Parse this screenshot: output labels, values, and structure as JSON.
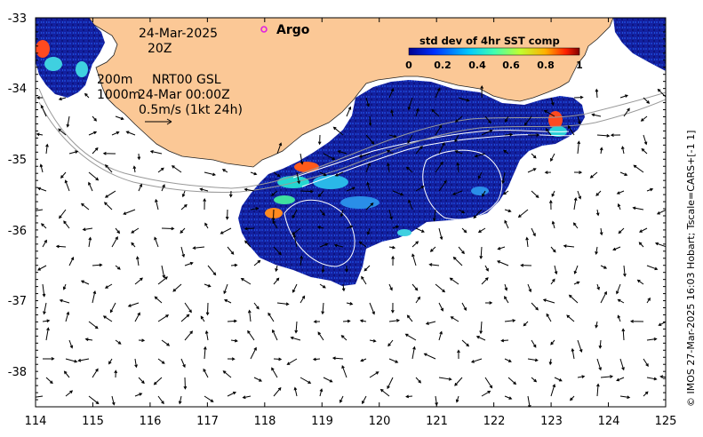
{
  "map": {
    "lon_range": [
      114,
      125
    ],
    "lat_range": [
      -38.5,
      -33
    ],
    "x_ticks": [
      "114",
      "115",
      "116",
      "117",
      "118",
      "119",
      "120",
      "121",
      "122",
      "123",
      "124",
      "125"
    ],
    "y_ticks": [
      "-33",
      "-34",
      "-35",
      "-36",
      "-37",
      "-38"
    ],
    "colors": {
      "land": "#fbc896",
      "water": "#ffffff",
      "sst_low": "#10189c",
      "sst_mid": "#2a6ee8",
      "sst_high": "#3fd3e0",
      "sst_peak": "#ff3b1a",
      "argo_marker": "#e020e0"
    }
  },
  "annotations": {
    "date": "24-Mar-2025",
    "time": "20Z",
    "depth_200": "200m",
    "depth_1000": "1000m",
    "product": "NRT00 GSL",
    "product_time": "24-Mar 00:00Z",
    "scale_text": "0.5m/s (1kt 24h)",
    "argo_label": "Argo"
  },
  "colorbar": {
    "title": "std dev of 4hr SST comp",
    "ticks": [
      "0",
      "0.2",
      "0.4",
      "0.6",
      "0.8",
      "1"
    ],
    "range": [
      0,
      1
    ]
  },
  "credit": "© IMOS 27-Mar-2025 16:03 Hobart; Tscale=CARS+[-1 1]"
}
